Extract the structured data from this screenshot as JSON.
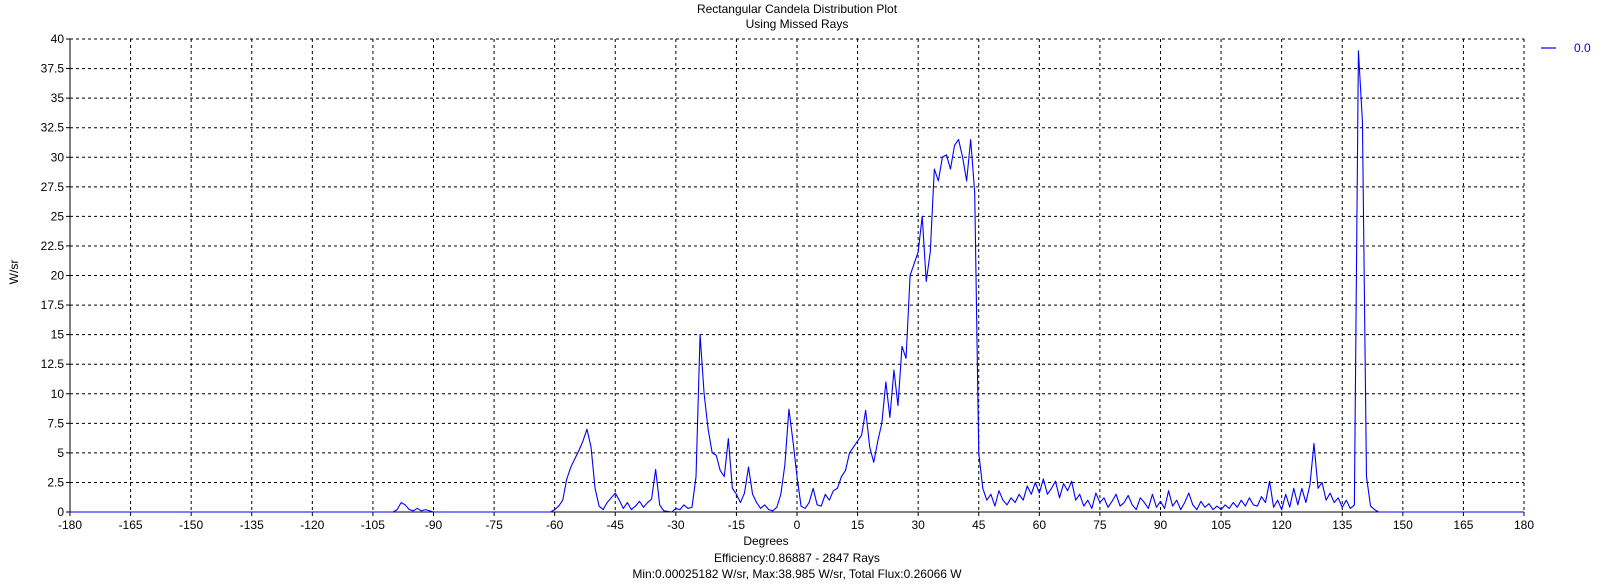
{
  "chart_data": {
    "type": "line",
    "title": "Rectangular Candela Distribution Plot",
    "subtitle": "Using Missed Rays",
    "xlabel": "Degrees",
    "ylabel": "W/sr",
    "footer": [
      "Efficiency:0.86887 - 2847 Rays",
      "Min:0.00025182 W/sr, Max:38.985 W/sr, Total Flux:0.26066 W"
    ],
    "xlim": [
      -180,
      180
    ],
    "ylim": [
      0,
      40
    ],
    "x_ticks": [
      -180,
      -165,
      -150,
      -135,
      -120,
      -105,
      -90,
      -75,
      -60,
      -45,
      -30,
      -15,
      0,
      15,
      30,
      45,
      60,
      75,
      90,
      105,
      120,
      135,
      150,
      165,
      180
    ],
    "y_ticks": [
      0,
      2.5,
      5,
      7.5,
      10,
      12.5,
      15,
      17.5,
      20,
      22.5,
      25,
      27.5,
      30,
      32.5,
      35,
      37.5,
      40
    ],
    "y_tick_labels": [
      "0",
      "2.5",
      "5",
      "7.5",
      "10",
      "12.5",
      "15",
      "17.5",
      "20",
      "22.5",
      "25",
      "27.5",
      "30",
      "32.5",
      "35",
      "37.5",
      "40"
    ],
    "grid": true,
    "grid_style": "dashed",
    "legend_position": "top-right",
    "colors": {
      "series": "#0000ff",
      "axis": "#000000",
      "grid": "#000000",
      "background": "#ffffff"
    },
    "series": [
      {
        "name": "0.0",
        "color": "#0000ff",
        "points": [
          [
            -180,
            0
          ],
          [
            -100,
            0
          ],
          [
            -99,
            0.2
          ],
          [
            -98,
            0.8
          ],
          [
            -97,
            0.6
          ],
          [
            -96,
            0.2
          ],
          [
            -95,
            0.1
          ],
          [
            -94,
            0.3
          ],
          [
            -93,
            0.1
          ],
          [
            -92,
            0.2
          ],
          [
            -90,
            0
          ],
          [
            -61,
            0
          ],
          [
            -60,
            0.2
          ],
          [
            -59,
            0.5
          ],
          [
            -58,
            1.0
          ],
          [
            -57,
            2.8
          ],
          [
            -56,
            3.8
          ],
          [
            -55,
            4.5
          ],
          [
            -54,
            5.2
          ],
          [
            -53,
            6.0
          ],
          [
            -52,
            7.0
          ],
          [
            -51,
            5.5
          ],
          [
            -50,
            2.0
          ],
          [
            -49,
            0.5
          ],
          [
            -48,
            0.2
          ],
          [
            -47,
            0.8
          ],
          [
            -46,
            1.2
          ],
          [
            -45,
            1.6
          ],
          [
            -44,
            1.0
          ],
          [
            -43,
            0.3
          ],
          [
            -42,
            0.8
          ],
          [
            -41,
            0.2
          ],
          [
            -40,
            0.5
          ],
          [
            -39,
            0.9
          ],
          [
            -38,
            0.4
          ],
          [
            -37,
            0.8
          ],
          [
            -36,
            1.1
          ],
          [
            -35,
            3.6
          ],
          [
            -34,
            0.6
          ],
          [
            -33,
            0.1
          ],
          [
            -31,
            0
          ],
          [
            -30,
            0.3
          ],
          [
            -29,
            0.2
          ],
          [
            -28,
            0.6
          ],
          [
            -27,
            0.3
          ],
          [
            -26,
            0.4
          ],
          [
            -25,
            3.0
          ],
          [
            -24,
            15.0
          ],
          [
            -23,
            10.0
          ],
          [
            -22,
            7.0
          ],
          [
            -21,
            5.0
          ],
          [
            -20,
            4.8
          ],
          [
            -19,
            3.5
          ],
          [
            -18,
            3.0
          ],
          [
            -17,
            6.2
          ],
          [
            -16,
            2.0
          ],
          [
            -15,
            1.5
          ],
          [
            -14,
            0.8
          ],
          [
            -13,
            1.6
          ],
          [
            -12,
            3.8
          ],
          [
            -11,
            1.5
          ],
          [
            -10,
            0.8
          ],
          [
            -9,
            0.3
          ],
          [
            -8,
            0.6
          ],
          [
            -7,
            0.2
          ],
          [
            -6,
            0.1
          ],
          [
            -5,
            0.4
          ],
          [
            -4,
            1.5
          ],
          [
            -3,
            4.0
          ],
          [
            -2,
            8.7
          ],
          [
            -1,
            6.0
          ],
          [
            0,
            3.0
          ],
          [
            1,
            0.5
          ],
          [
            2,
            0.3
          ],
          [
            3,
            0.8
          ],
          [
            4,
            2.0
          ],
          [
            5,
            0.6
          ],
          [
            6,
            0.5
          ],
          [
            7,
            1.5
          ],
          [
            8,
            1.0
          ],
          [
            9,
            1.8
          ],
          [
            10,
            2.0
          ],
          [
            11,
            3.0
          ],
          [
            12,
            3.5
          ],
          [
            13,
            5.0
          ],
          [
            14,
            5.5
          ],
          [
            15,
            6.0
          ],
          [
            16,
            6.5
          ],
          [
            17,
            8.6
          ],
          [
            18,
            5.5
          ],
          [
            19,
            4.2
          ],
          [
            20,
            6.0
          ],
          [
            21,
            7.5
          ],
          [
            22,
            11.0
          ],
          [
            23,
            8.0
          ],
          [
            24,
            12.0
          ],
          [
            25,
            9.0
          ],
          [
            26,
            14.0
          ],
          [
            27,
            13.0
          ],
          [
            28,
            20.0
          ],
          [
            29,
            21.0
          ],
          [
            30,
            22.0
          ],
          [
            31,
            25.0
          ],
          [
            32,
            19.5
          ],
          [
            33,
            22.0
          ],
          [
            34,
            29.0
          ],
          [
            35,
            28.0
          ],
          [
            36,
            30.0
          ],
          [
            37,
            30.2
          ],
          [
            38,
            29.0
          ],
          [
            39,
            31.0
          ],
          [
            40,
            31.5
          ],
          [
            41,
            30.0
          ],
          [
            42,
            28.0
          ],
          [
            43,
            31.5
          ],
          [
            44,
            27.0
          ],
          [
            45,
            5.0
          ],
          [
            46,
            2.0
          ],
          [
            47,
            1.0
          ],
          [
            48,
            1.5
          ],
          [
            49,
            0.5
          ],
          [
            50,
            1.8
          ],
          [
            51,
            1.0
          ],
          [
            52,
            0.6
          ],
          [
            53,
            1.2
          ],
          [
            54,
            0.8
          ],
          [
            55,
            1.5
          ],
          [
            56,
            1.0
          ],
          [
            57,
            2.2
          ],
          [
            58,
            1.5
          ],
          [
            59,
            2.5
          ],
          [
            60,
            1.6
          ],
          [
            61,
            2.8
          ],
          [
            62,
            1.5
          ],
          [
            63,
            2.0
          ],
          [
            64,
            2.6
          ],
          [
            65,
            1.2
          ],
          [
            66,
            2.4
          ],
          [
            67,
            1.8
          ],
          [
            68,
            2.6
          ],
          [
            69,
            1.0
          ],
          [
            70,
            1.5
          ],
          [
            71,
            0.5
          ],
          [
            72,
            1.0
          ],
          [
            73,
            0.3
          ],
          [
            74,
            1.6
          ],
          [
            75,
            0.8
          ],
          [
            76,
            1.2
          ],
          [
            77,
            0.4
          ],
          [
            78,
            0.9
          ],
          [
            79,
            1.5
          ],
          [
            80,
            0.5
          ],
          [
            81,
            0.8
          ],
          [
            82,
            1.4
          ],
          [
            83,
            0.6
          ],
          [
            84,
            0.2
          ],
          [
            85,
            1.2
          ],
          [
            86,
            0.8
          ],
          [
            87,
            0.3
          ],
          [
            88,
            1.5
          ],
          [
            89,
            0.4
          ],
          [
            90,
            0.9
          ],
          [
            91,
            0.3
          ],
          [
            92,
            1.8
          ],
          [
            93,
            0.5
          ],
          [
            94,
            1.0
          ],
          [
            95,
            0.2
          ],
          [
            96,
            0.8
          ],
          [
            97,
            1.6
          ],
          [
            98,
            0.6
          ],
          [
            99,
            0.2
          ],
          [
            100,
            0.9
          ],
          [
            101,
            0.4
          ],
          [
            102,
            0.7
          ],
          [
            103,
            0.2
          ],
          [
            104,
            0.5
          ],
          [
            105,
            0.2
          ],
          [
            106,
            0.6
          ],
          [
            107,
            0.3
          ],
          [
            108,
            0.8
          ],
          [
            109,
            0.4
          ],
          [
            110,
            1.0
          ],
          [
            111,
            0.5
          ],
          [
            112,
            1.2
          ],
          [
            113,
            0.6
          ],
          [
            114,
            0.5
          ],
          [
            115,
            1.3
          ],
          [
            116,
            0.8
          ],
          [
            117,
            2.6
          ],
          [
            118,
            0.4
          ],
          [
            119,
            1.0
          ],
          [
            120,
            0.2
          ],
          [
            121,
            1.5
          ],
          [
            122,
            0.4
          ],
          [
            123,
            2.0
          ],
          [
            124,
            0.6
          ],
          [
            125,
            2.0
          ],
          [
            126,
            0.8
          ],
          [
            127,
            2.3
          ],
          [
            128,
            5.8
          ],
          [
            129,
            2.0
          ],
          [
            130,
            2.5
          ],
          [
            131,
            1.0
          ],
          [
            132,
            1.6
          ],
          [
            133,
            0.8
          ],
          [
            134,
            1.2
          ],
          [
            135,
            0.4
          ],
          [
            136,
            1.0
          ],
          [
            137,
            0.3
          ],
          [
            138,
            0.6
          ],
          [
            139,
            39.0
          ],
          [
            140,
            33.0
          ],
          [
            141,
            3.0
          ],
          [
            142,
            0.5
          ],
          [
            143,
            0.2
          ],
          [
            144,
            0
          ],
          [
            180,
            0
          ]
        ]
      }
    ]
  }
}
